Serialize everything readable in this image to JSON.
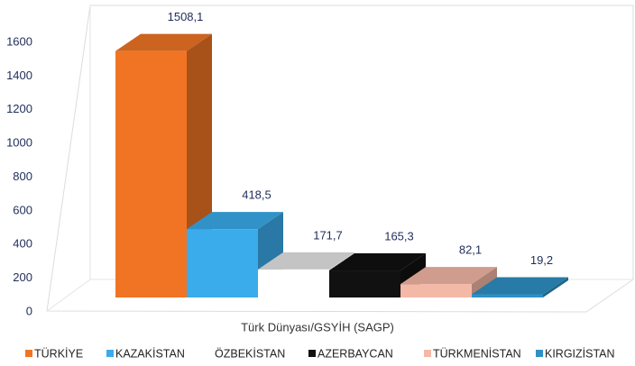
{
  "chart_data": {
    "type": "bar3d",
    "categories": [
      "Türk Dünyası/GSYİH (SAGP)"
    ],
    "series": [
      {
        "name": "TÜRKİYE",
        "color": "#f07424",
        "values": [
          1508.1
        ],
        "value_labels": [
          "1508,1"
        ]
      },
      {
        "name": "KAZAKİSTAN",
        "color": "#3aaceb",
        "values": [
          418.5
        ],
        "value_labels": [
          "418,5"
        ]
      },
      {
        "name": "ÖZBEKİSTAN",
        "color": "#ffffff",
        "values": [
          171.7
        ],
        "value_labels": [
          "171,7"
        ]
      },
      {
        "name": "AZERBAYCAN",
        "color": "#111111",
        "values": [
          165.3
        ],
        "value_labels": [
          "165,3"
        ]
      },
      {
        "name": "TÜRKMENİSTAN",
        "color": "#f4b8a6",
        "values": [
          82.1
        ],
        "value_labels": [
          "82,1"
        ]
      },
      {
        "name": "KIRGIZİSTAN",
        "color": "#2f90c4",
        "values": [
          19.2
        ],
        "value_labels": [
          "19,2"
        ]
      }
    ],
    "ylim": [
      0,
      1600
    ],
    "yticks": [
      0,
      200,
      400,
      600,
      800,
      1000,
      1200,
      1400,
      1600
    ]
  }
}
